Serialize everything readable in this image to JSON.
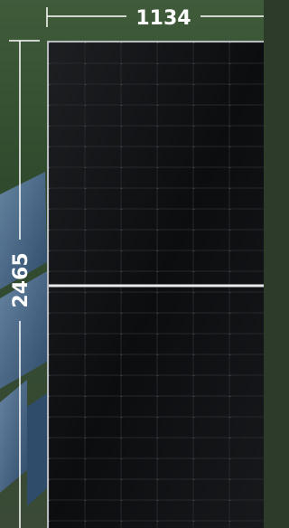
{
  "dimensions": {
    "width": 1134,
    "height": 2465
  }
}
